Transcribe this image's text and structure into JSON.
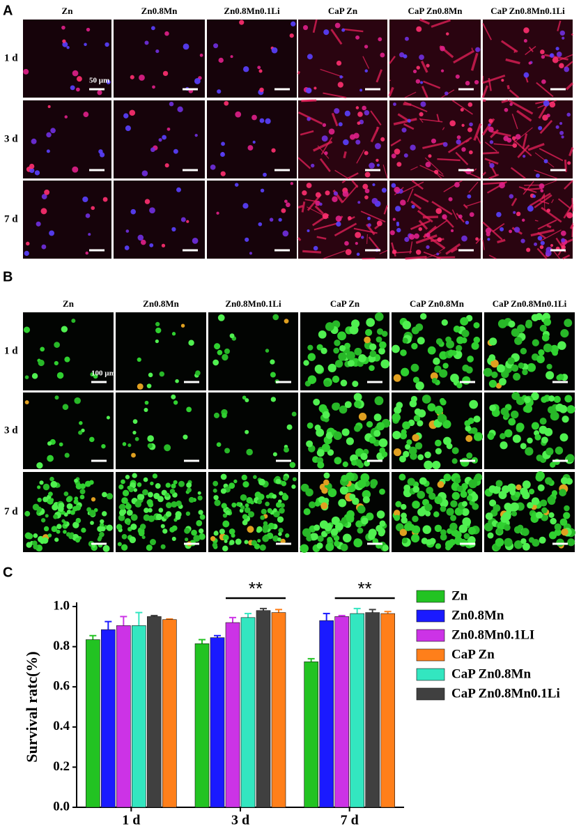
{
  "panel_a": {
    "label": "A",
    "columns": [
      "Zn",
      "Zn0.8Mn",
      "Zn0.8Mn0.1Li",
      "CaP Zn",
      "CaP Zn0.8Mn",
      "CaP Zn0.8Mn0.1Li"
    ],
    "rows": [
      "1 d",
      "3 d",
      "7 d"
    ],
    "scale_bar": "50 µm"
  },
  "panel_b": {
    "label": "B",
    "columns": [
      "Zn",
      "Zn0.8Mn",
      "Zn0.8Mn0.1Li",
      "CaP Zn",
      "CaP Zn0.8Mn",
      "CaP Zn0.8Mn0.1Li"
    ],
    "rows": [
      "1 d",
      "3 d",
      "7 d"
    ],
    "scale_bar": "100 µm"
  },
  "chart_data": {
    "type": "bar",
    "panel_label": "C",
    "ylabel": "Survival ratc(%)",
    "categories": [
      "1 d",
      "3 d",
      "7 d"
    ],
    "series": [
      {
        "name": "Zn",
        "color": "#22c322",
        "values": [
          0.835,
          0.815,
          0.725
        ],
        "errors": [
          0.02,
          0.02,
          0.015
        ]
      },
      {
        "name": "Zn0.8Mn",
        "color": "#1a1aff",
        "values": [
          0.885,
          0.845,
          0.93
        ],
        "errors": [
          0.04,
          0.01,
          0.035
        ]
      },
      {
        "name": "Zn0.8Mn0.1LI",
        "color": "#cc33e6",
        "values": [
          0.905,
          0.92,
          0.95
        ],
        "errors": [
          0.045,
          0.025,
          0.005
        ]
      },
      {
        "name": "CaP Zn",
        "color": "#ff7f1a",
        "values": [
          0.935,
          0.97,
          0.965
        ],
        "errors": [
          0.003,
          0.015,
          0.01
        ]
      },
      {
        "name": "CaP Zn0.8Mn",
        "color": "#33e6c0",
        "values": [
          0.905,
          0.945,
          0.965
        ],
        "errors": [
          0.065,
          0.02,
          0.025
        ]
      },
      {
        "name": "CaP Zn0.8Mn0.1Li",
        "color": "#404040",
        "values": [
          0.95,
          0.98,
          0.97
        ],
        "errors": [
          0.005,
          0.01,
          0.015
        ]
      }
    ],
    "bar_order": [
      0,
      1,
      2,
      4,
      5,
      3
    ],
    "ylim": [
      0,
      1
    ],
    "yticks": [
      {
        "value": 0,
        "label": "0.0"
      },
      0.2,
      0.4,
      0.6,
      0.8,
      {
        "value": 1,
        "label": "1.0"
      }
    ],
    "legend": "right",
    "annotations": [
      {
        "text": "**",
        "category": "3 d"
      },
      {
        "text": "**",
        "category": "7 d"
      }
    ]
  }
}
